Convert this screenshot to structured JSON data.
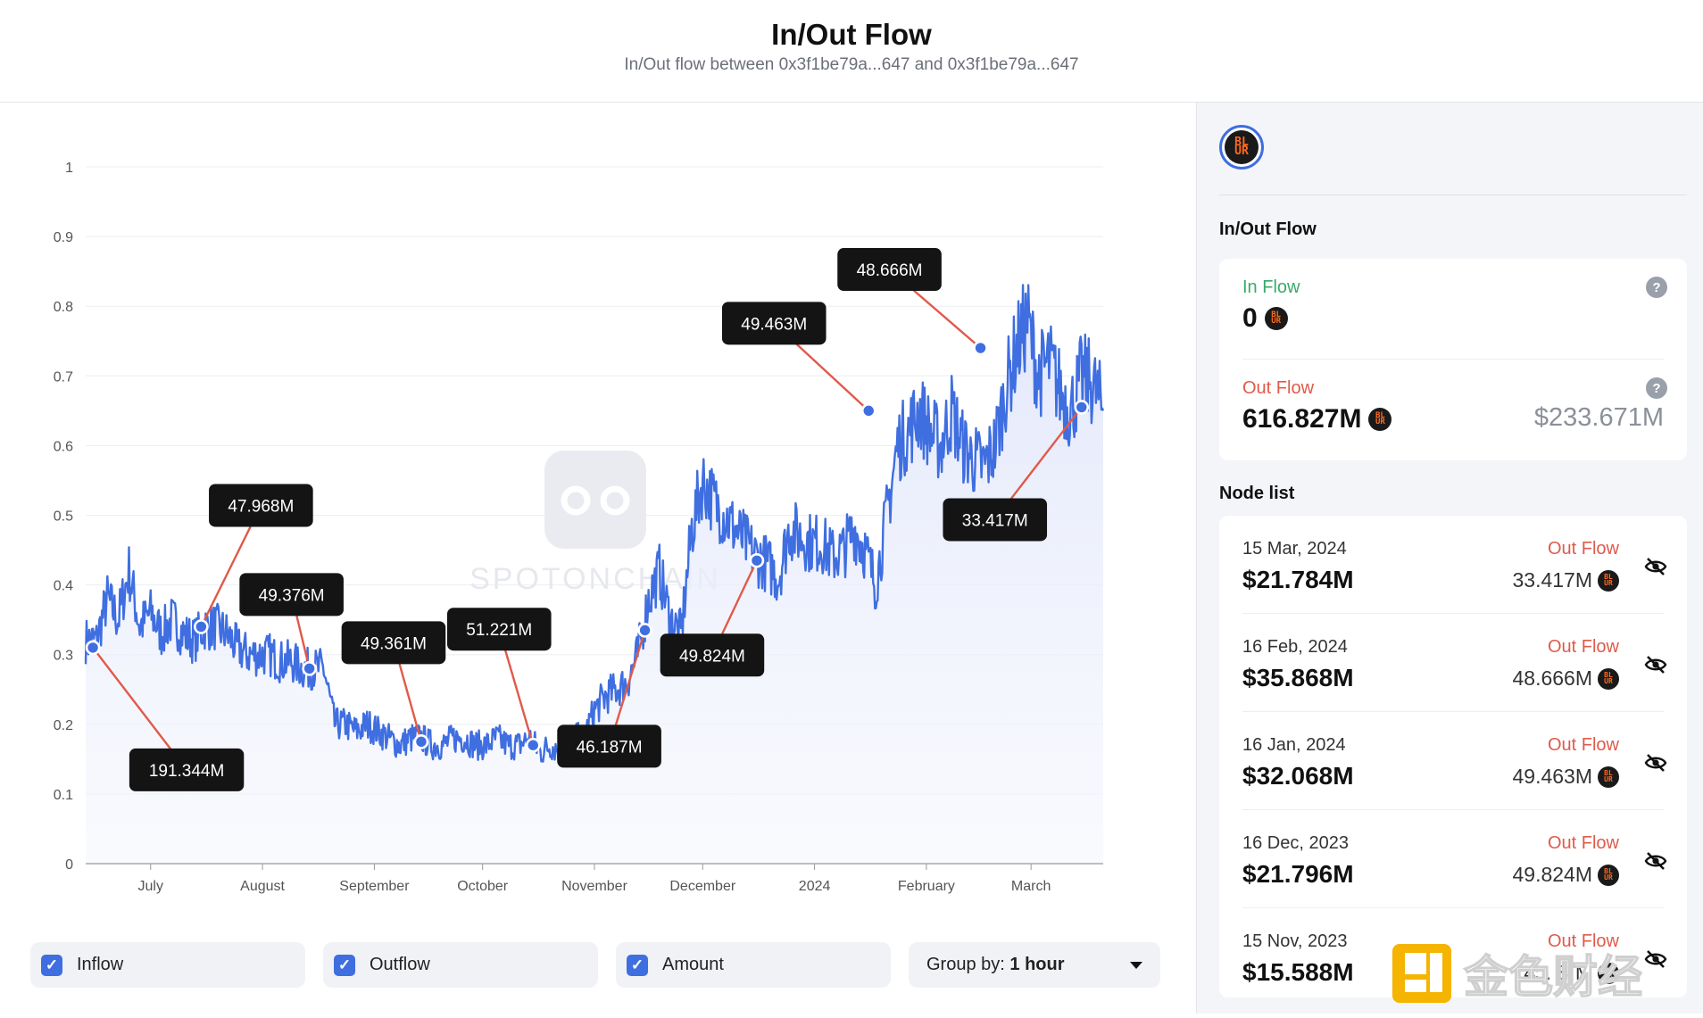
{
  "header": {
    "title": "In/Out Flow",
    "subtitle": "In/Out flow between 0x3f1be79a...647 and 0x3f1be79a...647"
  },
  "token": {
    "symbol_mark": "BLUR",
    "logo_lines": [
      "BL",
      "UR"
    ]
  },
  "sidebar": {
    "flow_title": "In/Out Flow",
    "in_flow": {
      "label": "In Flow",
      "value": "0",
      "help": "?"
    },
    "out_flow": {
      "label": "Out Flow",
      "value": "616.827M",
      "usd": "$233.671M",
      "help": "?"
    },
    "node_list_title": "Node list",
    "nodes": [
      {
        "date": "15 Mar, 2024",
        "usd": "$21.784M",
        "direction": "Out Flow",
        "amount": "33.417M"
      },
      {
        "date": "16 Feb, 2024",
        "usd": "$35.868M",
        "direction": "Out Flow",
        "amount": "48.666M"
      },
      {
        "date": "16 Jan, 2024",
        "usd": "$32.068M",
        "direction": "Out Flow",
        "amount": "49.463M"
      },
      {
        "date": "16 Dec, 2023",
        "usd": "$21.796M",
        "direction": "Out Flow",
        "amount": "49.824M"
      },
      {
        "date": "15 Nov, 2023",
        "usd": "$15.588M",
        "direction": "Out Flow",
        "amount": "4ɔ. 8´M"
      }
    ]
  },
  "controls": {
    "inflow_label": "Inflow",
    "outflow_label": "Outflow",
    "amount_label": "Amount",
    "group_by_label": "Group by:",
    "group_by_value": "1 hour"
  },
  "watermark": {
    "chart_text": "SPOTONCHAIN",
    "corner_text": "金色财经"
  },
  "colors": {
    "line": "#3f6ee0",
    "connector": "#e05a4a",
    "in_flow": "#3aaa6a",
    "out_flow": "#e05a4a",
    "accent": "#3f6ee0"
  },
  "chart_data": {
    "type": "area",
    "y_ticks": [
      "0",
      "0.1",
      "0.2",
      "0.3",
      "0.4",
      "0.5",
      "0.6",
      "0.7",
      "0.8",
      "0.9",
      "1"
    ],
    "ylim": [
      0,
      1
    ],
    "x_ticks": [
      {
        "label": "July",
        "date": "2023-07-01"
      },
      {
        "label": "August",
        "date": "2023-08-01"
      },
      {
        "label": "September",
        "date": "2023-09-01"
      },
      {
        "label": "October",
        "date": "2023-10-01"
      },
      {
        "label": "November",
        "date": "2023-11-01"
      },
      {
        "label": "December",
        "date": "2023-12-01"
      },
      {
        "label": "2024",
        "date": "2024-01-01"
      },
      {
        "label": "February",
        "date": "2024-02-01"
      },
      {
        "label": "March",
        "date": "2024-03-01"
      }
    ],
    "xlim": [
      "2023-06-13",
      "2024-03-21"
    ],
    "grid": true,
    "series": [
      {
        "x": [
          "2023-06-13",
          "2023-06-16",
          "2023-06-19",
          "2023-06-22",
          "2023-06-25",
          "2023-06-28",
          "2023-07-01",
          "2023-07-04",
          "2023-07-07",
          "2023-07-10",
          "2023-07-13",
          "2023-07-16",
          "2023-07-19",
          "2023-07-22",
          "2023-07-25",
          "2023-07-28",
          "2023-07-31",
          "2023-08-03",
          "2023-08-06",
          "2023-08-09",
          "2023-08-12",
          "2023-08-15",
          "2023-08-18",
          "2023-08-21",
          "2023-08-24",
          "2023-08-27",
          "2023-08-30",
          "2023-09-02",
          "2023-09-05",
          "2023-09-08",
          "2023-09-11",
          "2023-09-14",
          "2023-09-17",
          "2023-09-20",
          "2023-09-23",
          "2023-09-26",
          "2023-09-29",
          "2023-10-02",
          "2023-10-05",
          "2023-10-08",
          "2023-10-11",
          "2023-10-14",
          "2023-10-17",
          "2023-10-20",
          "2023-10-23",
          "2023-10-26",
          "2023-10-29",
          "2023-11-01",
          "2023-11-04",
          "2023-11-07",
          "2023-11-10",
          "2023-11-13",
          "2023-11-16",
          "2023-11-19",
          "2023-11-22",
          "2023-11-25",
          "2023-11-28",
          "2023-12-01",
          "2023-12-04",
          "2023-12-07",
          "2023-12-10",
          "2023-12-13",
          "2023-12-16",
          "2023-12-19",
          "2023-12-22",
          "2023-12-25",
          "2023-12-28",
          "2023-12-31",
          "2024-01-03",
          "2024-01-06",
          "2024-01-09",
          "2024-01-12",
          "2024-01-15",
          "2024-01-18",
          "2024-01-21",
          "2024-01-24",
          "2024-01-27",
          "2024-01-30",
          "2024-02-02",
          "2024-02-05",
          "2024-02-08",
          "2024-02-11",
          "2024-02-14",
          "2024-02-17",
          "2024-02-20",
          "2024-02-23",
          "2024-02-26",
          "2024-02-29",
          "2024-03-03",
          "2024-03-06",
          "2024-03-09",
          "2024-03-12",
          "2024-03-15",
          "2024-03-18",
          "2024-03-21"
        ],
        "y": [
          0.32,
          0.32,
          0.38,
          0.35,
          0.42,
          0.34,
          0.36,
          0.33,
          0.35,
          0.33,
          0.32,
          0.34,
          0.34,
          0.33,
          0.31,
          0.3,
          0.3,
          0.3,
          0.29,
          0.29,
          0.28,
          0.28,
          0.28,
          0.2,
          0.2,
          0.19,
          0.2,
          0.19,
          0.18,
          0.17,
          0.18,
          0.18,
          0.17,
          0.17,
          0.18,
          0.18,
          0.17,
          0.17,
          0.18,
          0.17,
          0.17,
          0.18,
          0.16,
          0.17,
          0.16,
          0.18,
          0.18,
          0.22,
          0.24,
          0.25,
          0.26,
          0.3,
          0.38,
          0.42,
          0.35,
          0.33,
          0.48,
          0.55,
          0.52,
          0.5,
          0.48,
          0.46,
          0.44,
          0.43,
          0.41,
          0.48,
          0.47,
          0.46,
          0.46,
          0.44,
          0.45,
          0.48,
          0.45,
          0.4,
          0.5,
          0.6,
          0.62,
          0.65,
          0.62,
          0.6,
          0.65,
          0.6,
          0.58,
          0.57,
          0.6,
          0.68,
          0.74,
          0.78,
          0.7,
          0.72,
          0.68,
          0.65,
          0.7,
          0.69,
          0.65
        ]
      }
    ],
    "annotations": [
      {
        "date": "2023-06-15",
        "y": 0.31,
        "label": "191.344M"
      },
      {
        "date": "2023-07-15",
        "y": 0.34,
        "label": "47.968M"
      },
      {
        "date": "2023-08-14",
        "y": 0.28,
        "label": "49.376M"
      },
      {
        "date": "2023-09-14",
        "y": 0.175,
        "label": "49.361M"
      },
      {
        "date": "2023-10-15",
        "y": 0.17,
        "label": "51.221M"
      },
      {
        "date": "2023-11-15",
        "y": 0.335,
        "label": "46.187M"
      },
      {
        "date": "2023-12-16",
        "y": 0.435,
        "label": "49.824M"
      },
      {
        "date": "2024-01-16",
        "y": 0.65,
        "label": "49.463M"
      },
      {
        "date": "2024-02-16",
        "y": 0.74,
        "label": "48.666M"
      },
      {
        "date": "2024-03-15",
        "y": 0.655,
        "label": "33.417M"
      }
    ]
  }
}
